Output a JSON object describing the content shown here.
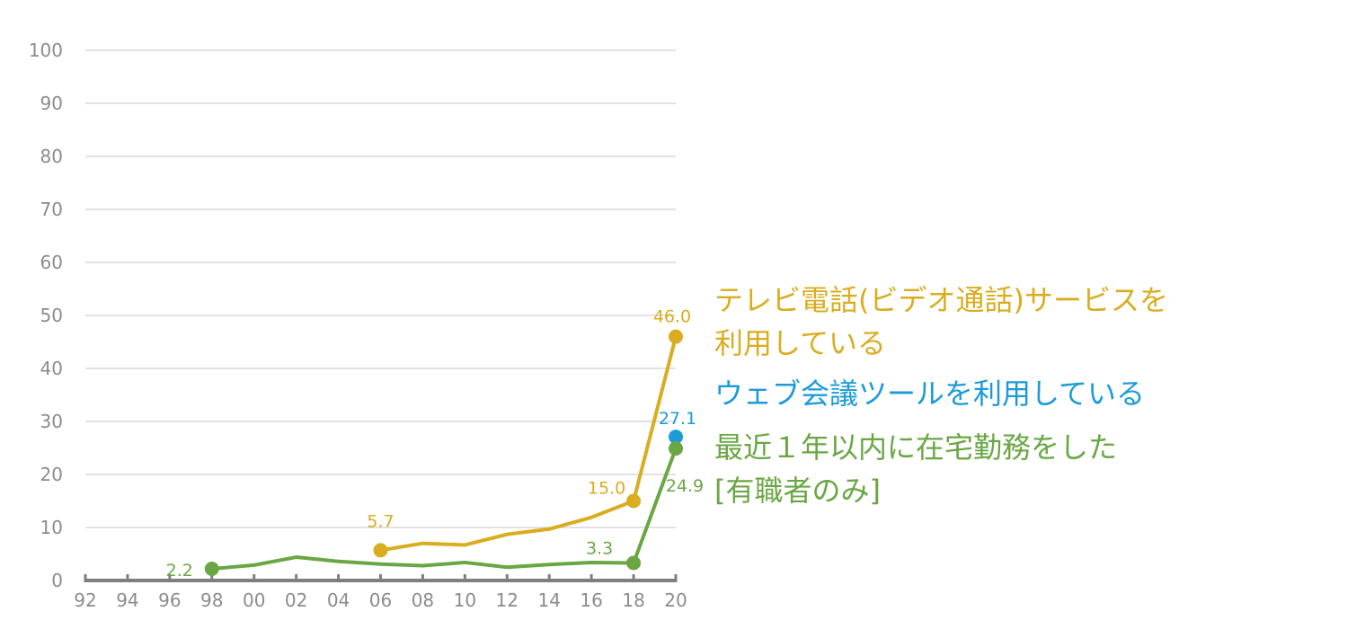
{
  "chart_data": {
    "type": "line",
    "x": [
      "92",
      "94",
      "96",
      "98",
      "00",
      "02",
      "04",
      "06",
      "08",
      "10",
      "12",
      "14",
      "16",
      "18",
      "20"
    ],
    "ylim": [
      0,
      100
    ],
    "yticks": [
      0,
      10,
      20,
      30,
      40,
      50,
      60,
      70,
      80,
      90,
      100
    ],
    "grid": true,
    "legend_placement": "right",
    "colors": {
      "tv": "#d9ad1f",
      "web": "#1b9bd8",
      "home": "#6aa744",
      "axis": "#8c8c8c",
      "grid": "#d9d9d9"
    },
    "series": [
      {
        "key": "tv",
        "name_lines": [
          "テレビ電話(ビデオ通話)サービスを",
          "利用している"
        ],
        "values": [
          null,
          null,
          null,
          null,
          null,
          null,
          null,
          5.7,
          7.0,
          6.7,
          8.7,
          9.7,
          11.9,
          15.0,
          46.0
        ],
        "labels": [
          {
            "x": "06",
            "text": "5.7"
          },
          {
            "x": "18",
            "text": "15.0"
          },
          {
            "x": "20",
            "text": "46.0"
          }
        ]
      },
      {
        "key": "web",
        "name_lines": [
          "ウェブ会議ツールを利用している"
        ],
        "values": [
          null,
          null,
          null,
          null,
          null,
          null,
          null,
          null,
          null,
          null,
          null,
          null,
          null,
          null,
          27.1
        ],
        "labels": [
          {
            "x": "20",
            "text": "27.1"
          }
        ]
      },
      {
        "key": "home",
        "name_lines": [
          "最近１年以内に在宅勤務をした",
          "[有職者のみ]"
        ],
        "values": [
          null,
          null,
          null,
          2.2,
          2.9,
          4.4,
          3.6,
          3.1,
          2.8,
          3.4,
          2.5,
          3.0,
          3.4,
          3.3,
          24.9
        ],
        "labels": [
          {
            "x": "98",
            "text": "2.2"
          },
          {
            "x": "18",
            "text": "3.3"
          },
          {
            "x": "20",
            "text": "24.9"
          }
        ]
      }
    ]
  }
}
